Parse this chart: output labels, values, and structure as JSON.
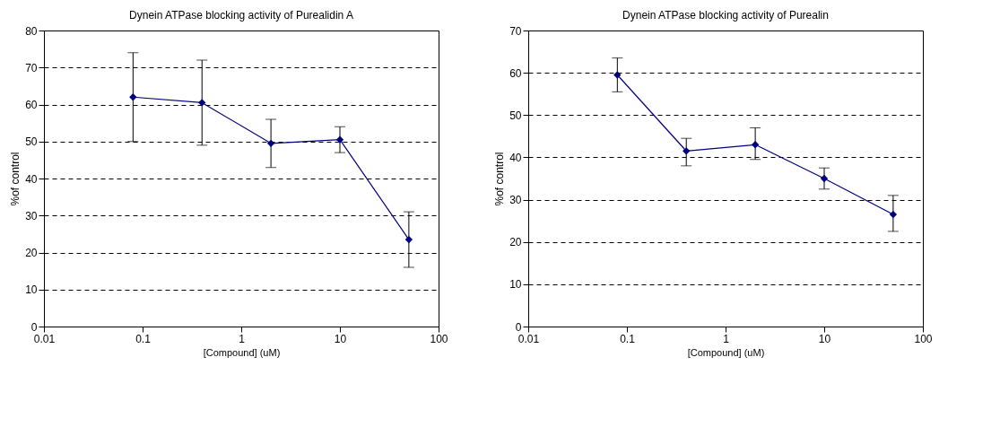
{
  "chart_data": [
    {
      "type": "line",
      "title": "Dynein ATPase blocking activity of Purealidin A",
      "xlabel": "[Compound] (uM)",
      "ylabel": "%of control",
      "log": "x",
      "grid": "y",
      "marker": "diamond",
      "line_style": "solid",
      "x": [
        0.08,
        0.4,
        2,
        10,
        50
      ],
      "series": [
        {
          "color": "#000080",
          "values": [
            62,
            60.5,
            49.5,
            50.5,
            23.5
          ],
          "errors": [
            [
              50,
              74
            ],
            [
              49,
              72
            ],
            [
              43,
              56
            ],
            [
              47,
              54
            ],
            [
              16,
              31
            ]
          ]
        }
      ],
      "xlim": [
        0.01,
        100
      ],
      "xticks": [
        0.01,
        0.1,
        1,
        10,
        100
      ],
      "ylim": [
        0,
        80
      ],
      "yticks": [
        0,
        10,
        20,
        30,
        40,
        50,
        60,
        70,
        80
      ]
    },
    {
      "type": "line",
      "title": "Dynein ATPase blocking activity of Purealin",
      "xlabel": "[Compound] (uM)",
      "ylabel": "%of control",
      "log": "x",
      "grid": "y",
      "marker": "diamond",
      "line_style": "solid",
      "x": [
        0.08,
        0.4,
        2,
        10,
        50
      ],
      "series": [
        {
          "color": "#000080",
          "values": [
            59.5,
            41.5,
            43,
            35,
            26.5
          ],
          "errors": [
            [
              55.5,
              63.5
            ],
            [
              38,
              44.5
            ],
            [
              39.5,
              47
            ],
            [
              32.5,
              37.5
            ],
            [
              22.5,
              31
            ]
          ]
        }
      ],
      "xlim": [
        0.01,
        100
      ],
      "xticks": [
        0.01,
        0.1,
        1,
        10,
        100
      ],
      "ylim": [
        0,
        70
      ],
      "yticks": [
        0,
        10,
        20,
        30,
        40,
        50,
        60,
        70
      ]
    }
  ]
}
